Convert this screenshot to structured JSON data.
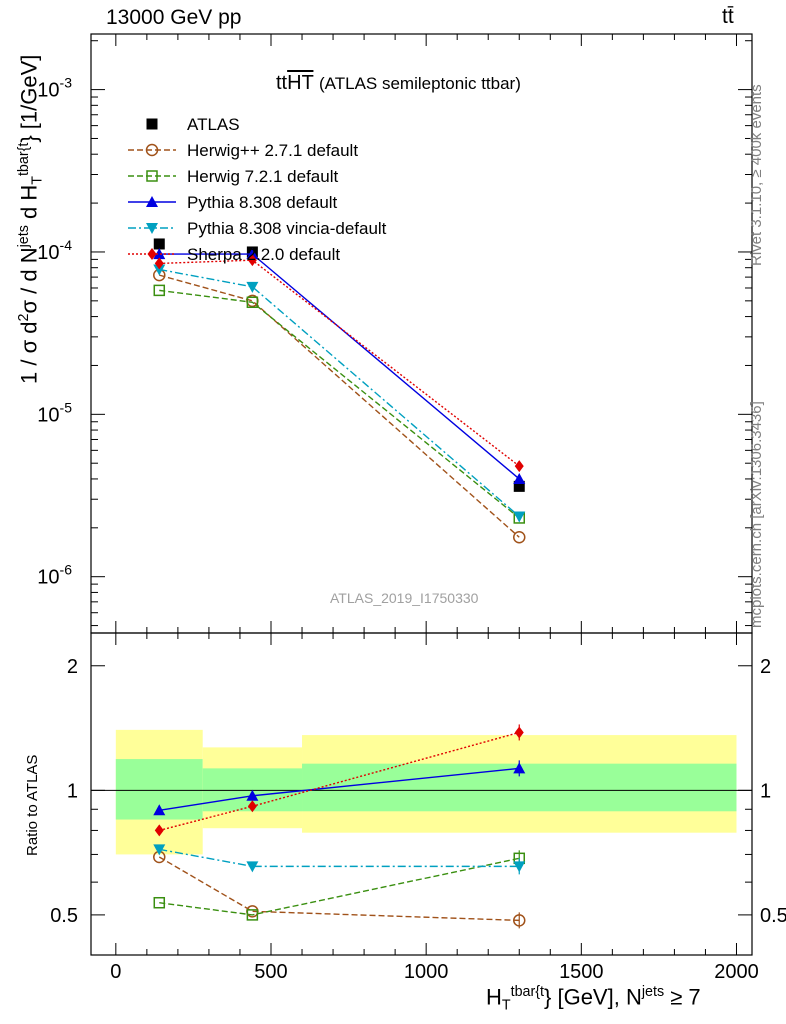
{
  "header": {
    "energy_label": "13000 GeV pp",
    "process_label": "tt̄"
  },
  "title": {
    "main": "tt",
    "overline": "HT",
    "subtitle": "(ATLAS semileptonic ttbar)"
  },
  "side_text": {
    "rivet": "Rivet 3.1.10, ≥ 400k events",
    "mcplots": "mcplots.cern.ch [arXiv:1306.3436]"
  },
  "watermark": "ATLAS_2019_I1750330",
  "axes": {
    "ylabel_main_prefix": "1 / σ d",
    "ylabel_main_mid": "σ / d N",
    "ylabel_main_jets": "jets",
    "ylabel_main_d": " d H",
    "ylabel_main_sub": "T",
    "ylabel_main_sup": "tbar{t",
    "ylabel_main_unit": "} [1/GeV]",
    "ylabel_ratio": "Ratio to ATLAS",
    "xlabel_prefix": "H",
    "xlabel_sub": "T",
    "xlabel_sup": "tbar{t",
    "xlabel_mid": "} [GeV], N",
    "xlabel_jets": "jets",
    "xlabel_suffix": " ≥ 7"
  },
  "colors": {
    "atlas": "#000000",
    "herwigpp": "#a0521a",
    "herwig7": "#3a8f10",
    "pythia": "#0000e0",
    "vincia": "#00a0c0",
    "sherpa": "#e00000",
    "band_inner": "#99ff99",
    "band_outer": "#ffff99"
  },
  "chart_data": {
    "type": "line",
    "x_bins": [
      [
        0,
        280
      ],
      [
        280,
        600
      ],
      [
        600,
        2000
      ]
    ],
    "x": [
      140,
      440,
      1300
    ],
    "xlim": [
      -80,
      2050
    ],
    "x_ticks": [
      0,
      500,
      1000,
      1500,
      2000
    ],
    "y_main_scale": "log",
    "y_main_lim": [
      4.5e-07,
      0.0022
    ],
    "y_main_ticks": [
      "10^-6",
      "10^-5",
      "10^-4",
      "10^-3"
    ],
    "y_ratio_lim": [
      0.4,
      2.4
    ],
    "y_ratio_ticks": [
      0.5,
      1,
      2
    ],
    "legend_position": "top-left",
    "series": [
      {
        "name": "ATLAS",
        "key": "atlas",
        "marker": "square-filled",
        "values": [
          0.000112,
          0.0001,
          3.6e-06
        ],
        "ratio_band_inner": [
          [
            0.85,
            1.19
          ],
          [
            0.89,
            1.13
          ],
          [
            0.89,
            1.16
          ]
        ],
        "ratio_band_outer": [
          [
            0.7,
            1.4
          ],
          [
            0.81,
            1.27
          ],
          [
            0.79,
            1.36
          ]
        ]
      },
      {
        "name": "Herwig++ 2.7.1 default",
        "key": "herwigpp",
        "marker": "circle-open",
        "dash": "6,3",
        "values": [
          7.2e-05,
          5e-05,
          1.75e-06
        ],
        "ratio": [
          0.69,
          0.51,
          0.485
        ]
      },
      {
        "name": "Herwig 7.2.1 default",
        "key": "herwig7",
        "marker": "square-open",
        "dash": "6,3",
        "values": [
          5.8e-05,
          4.9e-05,
          2.3e-06
        ],
        "ratio": [
          0.535,
          0.5,
          0.685
        ]
      },
      {
        "name": "Pythia 8.308 default",
        "key": "pythia",
        "marker": "triangle-up",
        "dash": "",
        "values": [
          9.7e-05,
          9.7e-05,
          4e-06
        ],
        "ratio": [
          0.895,
          0.97,
          1.13
        ]
      },
      {
        "name": "Pythia 8.308 vincia-default",
        "key": "vincia",
        "marker": "triangle-down",
        "dash": "8,3,2,3",
        "values": [
          7.8e-05,
          6.1e-05,
          2.35e-06
        ],
        "ratio": [
          0.72,
          0.655,
          0.655
        ]
      },
      {
        "name": "Sherpa 2.2.0 default",
        "key": "sherpa",
        "marker": "diamond",
        "dash": "2,2",
        "values": [
          8.5e-05,
          8.9e-05,
          4.8e-06
        ],
        "ratio": [
          0.8,
          0.915,
          1.38
        ]
      }
    ]
  }
}
